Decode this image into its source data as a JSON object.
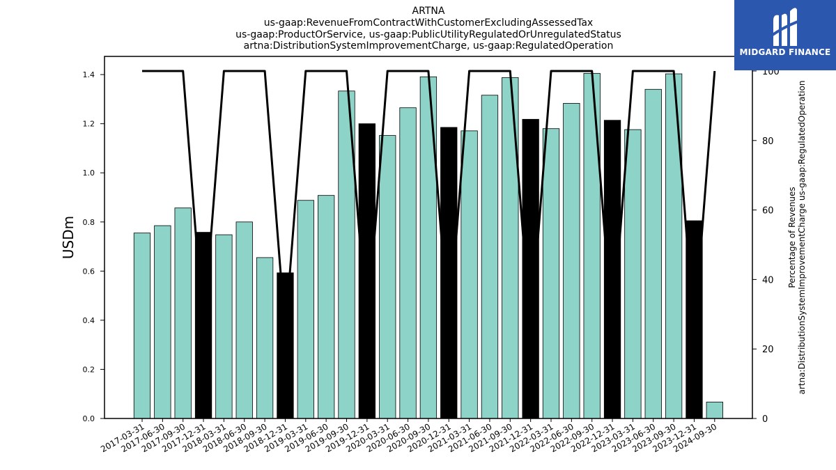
{
  "chart_data": {
    "type": "bar",
    "title_lines": [
      "ARTNA",
      "us-gaap:RevenueFromContractWithCustomerExcludingAssessedTax",
      "us-gaap:ProductOrService, us-gaap:PublicUtilityRegulatedOrUnregulatedStatus",
      "artna:DistributionSystemImprovementCharge, us-gaap:RegulatedOperation"
    ],
    "ylabel": "USDm",
    "ylabel_right_lines": [
      "Percentage of Revenues",
      "artna:DistributionSystemImprovementCharge us-gaap:RegulatedOperation"
    ],
    "categories": [
      "2017-03-31",
      "2017-06-30",
      "2017-09-30",
      "2017-12-31",
      "2018-03-31",
      "2018-06-30",
      "2018-09-30",
      "2018-12-31",
      "2019-03-31",
      "2019-06-30",
      "2019-09-30",
      "2019-12-31",
      "2020-03-31",
      "2020-06-30",
      "2020-09-30",
      "2020-12-31",
      "2021-03-31",
      "2021-06-30",
      "2021-09-30",
      "2021-12-31",
      "2022-03-31",
      "2022-06-30",
      "2022-09-30",
      "2022-12-31",
      "2023-03-31",
      "2023-06-30",
      "2023-09-30",
      "2023-12-31",
      "2024-09-30"
    ],
    "values": [
      0.755,
      0.785,
      0.857,
      0.758,
      0.748,
      0.8,
      0.655,
      0.593,
      0.888,
      0.908,
      1.333,
      1.2,
      1.152,
      1.265,
      1.391,
      1.185,
      1.171,
      1.316,
      1.388,
      1.218,
      1.18,
      1.283,
      1.405,
      1.214,
      1.176,
      1.34,
      1.403,
      0.805,
      0.067
    ],
    "bar_kind": [
      "quarter",
      "quarter",
      "quarter",
      "annual",
      "quarter",
      "quarter",
      "quarter",
      "annual",
      "quarter",
      "quarter",
      "quarter",
      "annual",
      "quarter",
      "quarter",
      "quarter",
      "annual",
      "quarter",
      "quarter",
      "quarter",
      "annual",
      "quarter",
      "quarter",
      "quarter",
      "annual",
      "quarter",
      "quarter",
      "quarter",
      "annual",
      "quarter"
    ],
    "percentage_line": [
      100,
      100,
      100,
      25,
      100,
      100,
      100,
      25,
      100,
      100,
      100,
      25,
      100,
      100,
      100,
      25,
      100,
      100,
      100,
      25,
      100,
      100,
      100,
      25,
      100,
      100,
      100,
      25,
      100
    ],
    "ylim": [
      0,
      1.474
    ],
    "ylim_right": [
      0,
      104.2
    ],
    "yticks": [
      "0.0",
      "0.2",
      "0.4",
      "0.6",
      "0.8",
      "1.0",
      "1.2",
      "1.4"
    ],
    "yticks_right": [
      "0",
      "20",
      "40",
      "60",
      "80",
      "100"
    ],
    "colors": {
      "quarter_bar": "#8dd3c7",
      "annual_bar": "#000000",
      "line": "#000000",
      "edge": "#000000"
    },
    "grid": false,
    "legend": "none"
  },
  "logo": {
    "text": "MIDGARD FINANCE",
    "background": "#2b58ae",
    "icon": "midgard-logo-icon"
  }
}
